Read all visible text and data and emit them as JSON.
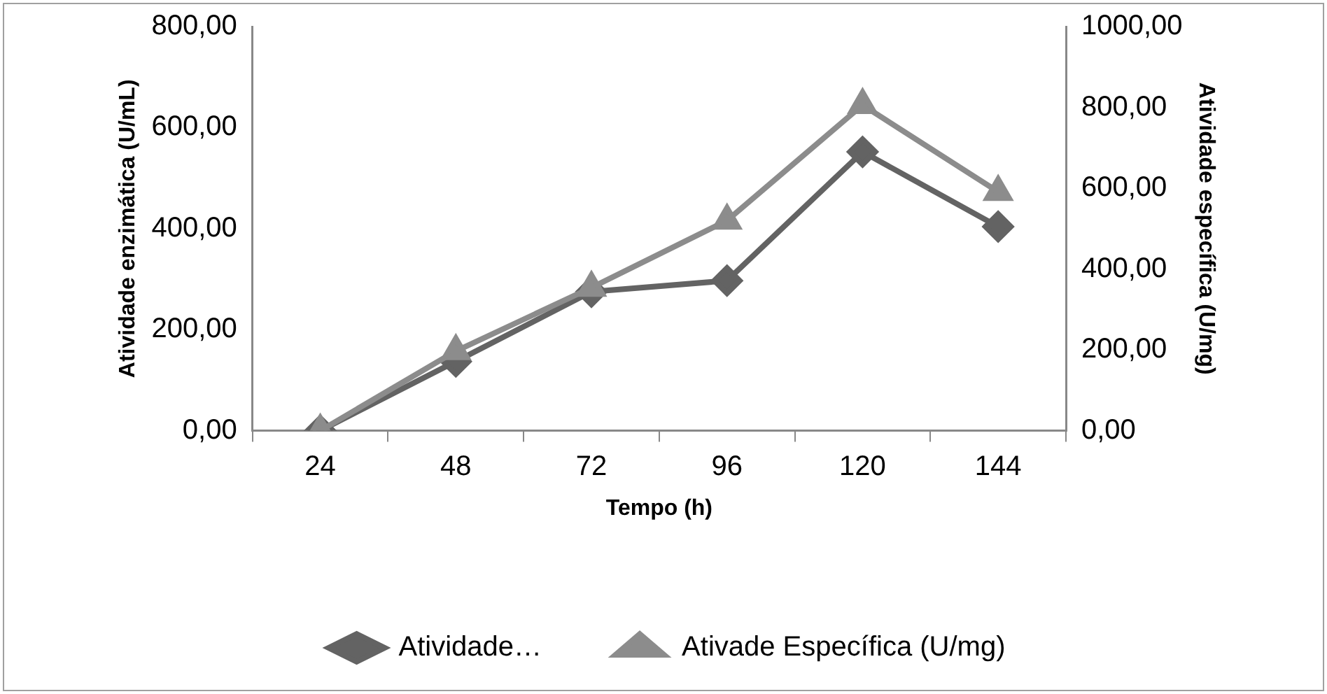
{
  "chart_data": {
    "type": "line",
    "xlabel": "Tempo (h)",
    "ylabel": "Atividade enzimática (U/mL)",
    "y2label": "Atividade específica (U/mg)",
    "categories": [
      "24",
      "48",
      "72",
      "96",
      "120",
      "144"
    ],
    "series": [
      {
        "name": "Atividade…",
        "color": "#636363",
        "marker": "diamond",
        "values": [
          0,
          137,
          275,
          297,
          552,
          404
        ]
      },
      {
        "name": "Ativade Específica (U/mg)",
        "color": "#8c8c8c",
        "marker": "triangle",
        "axis": "y2",
        "values": [
          0,
          197,
          354,
          520,
          806,
          591
        ]
      }
    ],
    "ylim": [
      0,
      800
    ],
    "yticks": [
      {
        "value": 0,
        "label": "0,00"
      },
      {
        "value": 200,
        "label": "200,00"
      },
      {
        "value": 400,
        "label": "400,00"
      },
      {
        "value": 600,
        "label": "600,00"
      },
      {
        "value": 800,
        "label": "800,00"
      }
    ],
    "y2lim": [
      0,
      1000
    ],
    "y2ticks": [
      {
        "value": 0,
        "label": "0,00"
      },
      {
        "value": 200,
        "label": "200,00"
      },
      {
        "value": 400,
        "label": "400,00"
      },
      {
        "value": 600,
        "label": "600,00"
      },
      {
        "value": 800,
        "label": "800,00"
      },
      {
        "value": 1000,
        "label": "1000,00"
      }
    ],
    "grid": false,
    "legend": "bottom",
    "line_style": "solid"
  }
}
